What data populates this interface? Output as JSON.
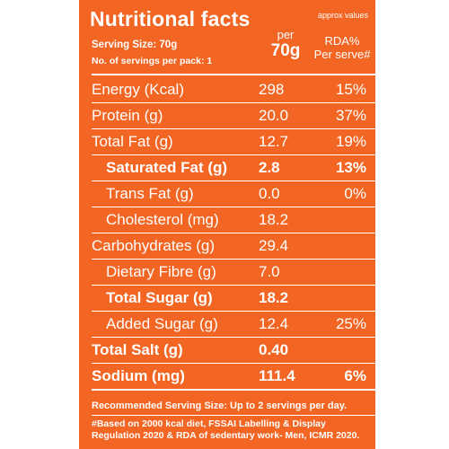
{
  "label": {
    "title": "Nutritional facts",
    "approx": "approx values",
    "serving_size": "Serving Size: 70g",
    "servings_per_pack": "No. of servings per pack: 1",
    "per_label": "per",
    "per_amount": "70g",
    "rda_label": "RDA%",
    "rda_sub": "Per serve#"
  },
  "nutrients": [
    {
      "name": "Energy (Kcal)",
      "value": "298",
      "rda": "15%"
    },
    {
      "name": "Protein (g)",
      "value": "20.0",
      "rda": "37%"
    },
    {
      "name": "Total Fat (g)",
      "value": "12.7",
      "rda": "19%"
    },
    {
      "name": "Saturated Fat (g)",
      "value": "2.8",
      "rda": "13%"
    },
    {
      "name": "Trans Fat (g)",
      "value": "0.0",
      "rda": "0%"
    },
    {
      "name": "Cholesterol (mg)",
      "value": "18.2",
      "rda": ""
    },
    {
      "name": "Carbohydrates (g)",
      "value": "29.4",
      "rda": ""
    },
    {
      "name": "Dietary Fibre (g)",
      "value": "7.0",
      "rda": ""
    },
    {
      "name": "Total Sugar (g)",
      "value": "18.2",
      "rda": ""
    },
    {
      "name": "Added Sugar (g)",
      "value": "12.4",
      "rda": "25%"
    },
    {
      "name": "Total Salt (g)",
      "value": "0.40",
      "rda": ""
    },
    {
      "name": "Sodium (mg)",
      "value": "111.4",
      "rda": "6%"
    }
  ],
  "footer": {
    "recommended": "Recommended Serving Size: Up to 2 servings per day.",
    "note_line1": "#Based on 2000 kcal diet, FSSAI Labelling & Display",
    "note_line2": "Regulation 2020 & RDA of sedentary work- Men, ICMR 2020."
  }
}
